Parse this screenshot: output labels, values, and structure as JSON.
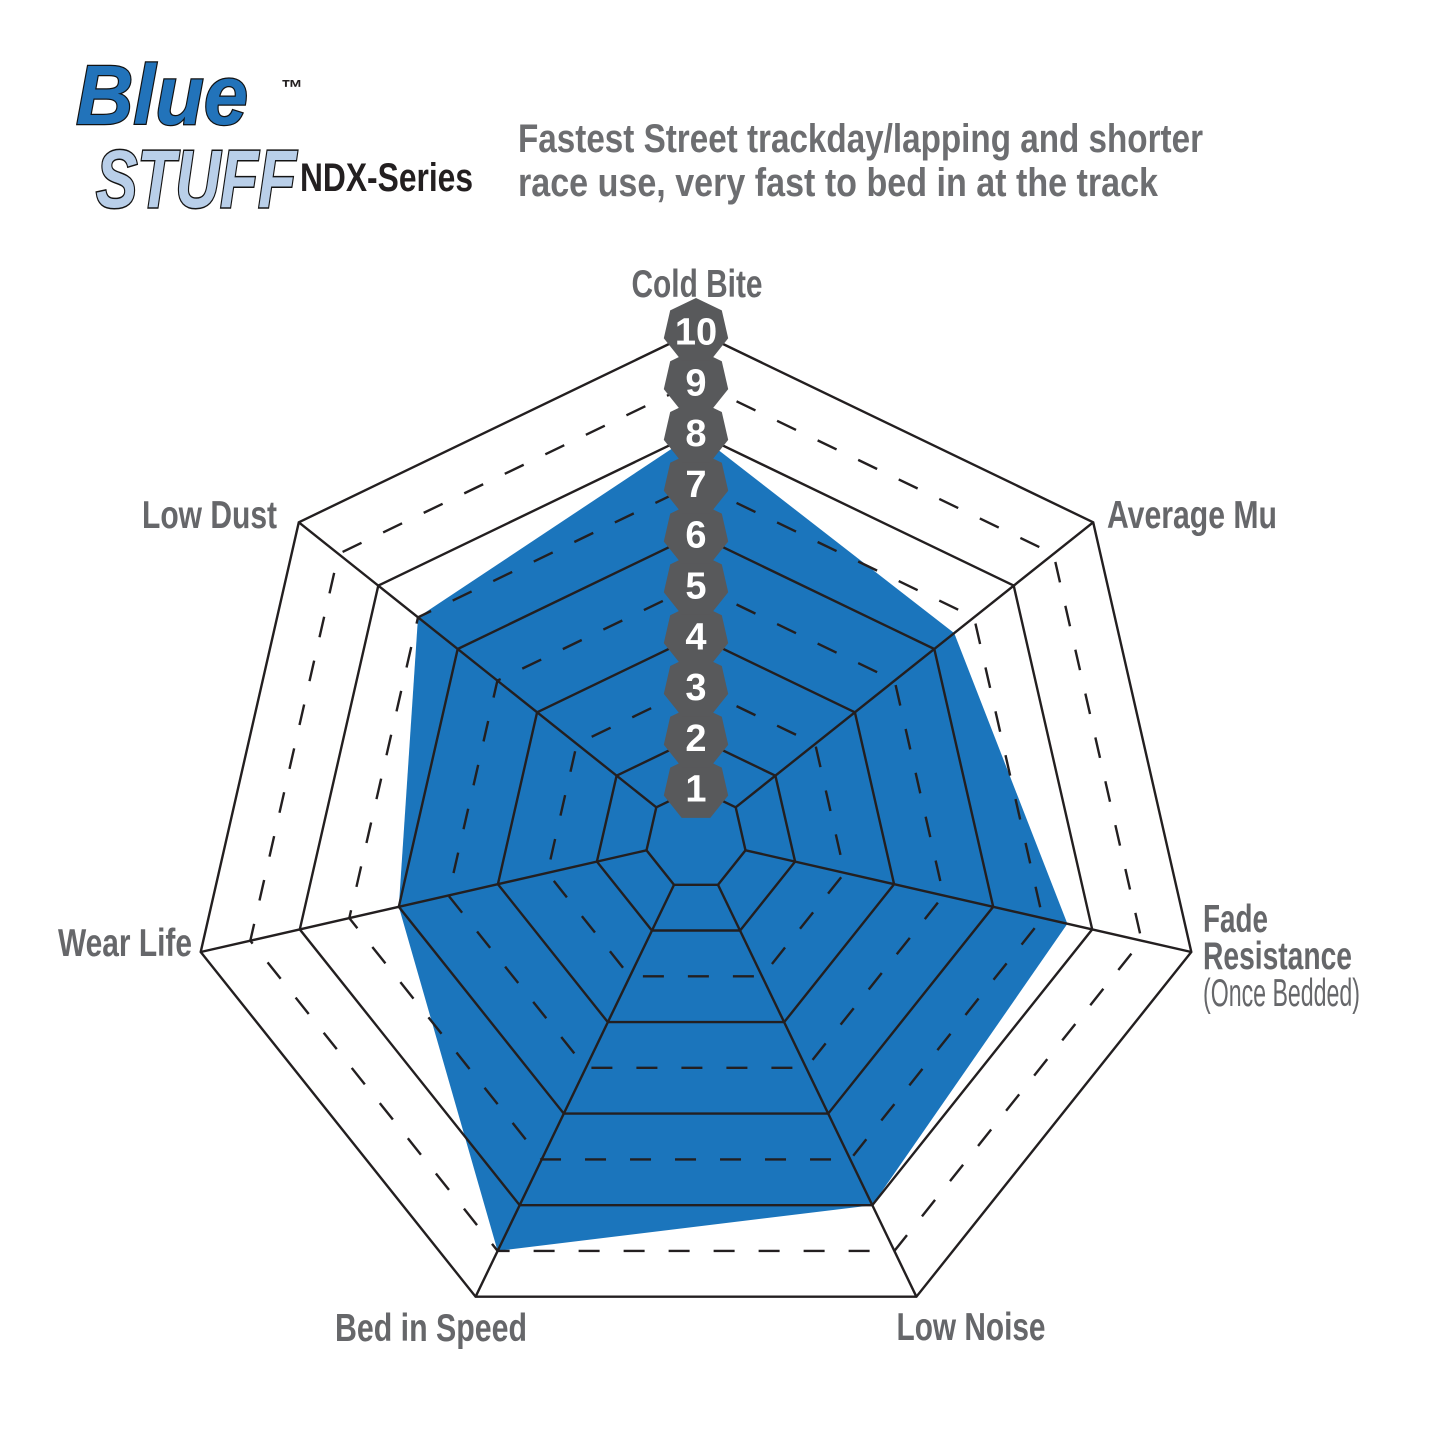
{
  "logo": {
    "brand_line1": "Blue",
    "brand_line2": "STUFF",
    "trademark": "™",
    "series": "NDX-Series"
  },
  "header": {
    "description_line1": "Fastest Street trackday/lapping and shorter",
    "description_line2": "race use, very fast to bed in at the track"
  },
  "chart_data": {
    "type": "radar",
    "title": "BlueStuff NDX-Series brake pad performance ratings",
    "categories": [
      "Cold Bite",
      "Average Mu",
      "Fade Resistance (Once Bedded)",
      "Low Noise",
      "Bed in Speed",
      "Wear Life",
      "Low Dust"
    ],
    "values": [
      8,
      6.5,
      7.5,
      8,
      9,
      6,
      7
    ],
    "axis_display": [
      {
        "lines": [
          "Cold Bite"
        ]
      },
      {
        "lines": [
          "Average Mu"
        ]
      },
      {
        "lines": [
          "Fade",
          "Resistance"
        ],
        "sub": "(Once Bedded)"
      },
      {
        "lines": [
          "Low Noise"
        ]
      },
      {
        "lines": [
          "Bed in Speed"
        ]
      },
      {
        "lines": [
          "Wear Life"
        ]
      },
      {
        "lines": [
          "Low Dust"
        ]
      }
    ],
    "scale": {
      "min": 0,
      "max": 10,
      "tick_badges": [
        "1",
        "2",
        "3",
        "4",
        "5",
        "6",
        "7",
        "8",
        "9",
        "10"
      ]
    },
    "grid": {
      "rings": 10,
      "solid_rings": [
        1,
        2,
        4,
        6,
        8,
        10
      ],
      "dashed_rings": [
        3,
        5,
        7,
        9
      ],
      "spokes": 7
    },
    "legend_position": "none",
    "colors": {
      "fill": "#1B75BC",
      "grid_line": "#231F20",
      "badge_fill": "#58595B",
      "badge_text": "#FFFFFF",
      "label_text": "#66676A",
      "logo_blue": "#2273BA",
      "logo_light_blue": "#B9CFE9"
    }
  }
}
